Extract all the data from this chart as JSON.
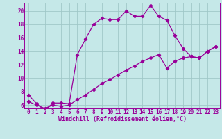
{
  "xlabel": "Windchill (Refroidissement éolien,°C)",
  "background_color": "#c5e8e8",
  "line_color": "#990099",
  "grid_color": "#a0c8c8",
  "xlim": [
    -0.5,
    23.5
  ],
  "ylim": [
    5.5,
    21.2
  ],
  "xticks": [
    0,
    1,
    2,
    3,
    4,
    5,
    6,
    7,
    8,
    9,
    10,
    11,
    12,
    13,
    14,
    15,
    16,
    17,
    18,
    19,
    20,
    21,
    22,
    23
  ],
  "yticks": [
    6,
    8,
    10,
    12,
    14,
    16,
    18,
    20
  ],
  "series1_x": [
    0,
    1,
    2,
    3,
    4,
    5,
    6,
    7,
    8,
    9,
    10,
    11,
    12,
    13,
    14,
    15,
    16,
    17,
    18,
    19,
    20,
    21,
    22,
    23
  ],
  "series1_y": [
    7.5,
    6.2,
    5.2,
    6.3,
    6.3,
    6.2,
    13.5,
    15.8,
    18.0,
    18.9,
    18.7,
    18.7,
    20.0,
    19.2,
    19.2,
    20.8,
    19.2,
    18.6,
    16.3,
    14.4,
    13.2,
    13.0,
    14.0,
    14.7
  ],
  "series2_x": [
    0,
    1,
    2,
    3,
    4,
    5,
    6,
    7,
    8,
    9,
    10,
    11,
    12,
    13,
    14,
    15,
    16,
    17,
    18,
    19,
    20,
    21,
    22,
    23
  ],
  "series2_y": [
    6.5,
    6.0,
    5.5,
    6.0,
    5.8,
    6.0,
    6.8,
    7.5,
    8.3,
    9.2,
    9.8,
    10.5,
    11.2,
    11.8,
    12.5,
    13.0,
    13.5,
    11.5,
    12.5,
    13.0,
    13.2,
    13.0,
    14.0,
    14.7
  ],
  "marker": "D",
  "marker_size": 2.2,
  "line_width": 0.9,
  "tick_fontsize": 5.5,
  "xlabel_fontsize": 6.0
}
